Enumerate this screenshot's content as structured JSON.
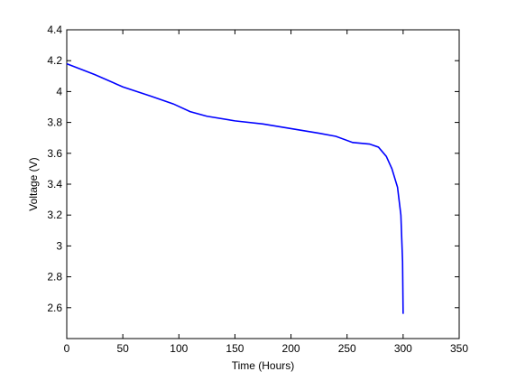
{
  "chart_data": {
    "type": "line",
    "xlabel": "Time (Hours)",
    "ylabel": "Voltage (V)",
    "x": [
      0,
      25,
      50,
      75,
      95,
      110,
      125,
      150,
      175,
      200,
      225,
      240,
      255,
      270,
      278,
      285,
      290,
      295,
      298,
      299.5,
      300
    ],
    "values": [
      4.18,
      4.11,
      4.03,
      3.97,
      3.92,
      3.87,
      3.84,
      3.81,
      3.79,
      3.76,
      3.73,
      3.71,
      3.67,
      3.66,
      3.64,
      3.58,
      3.5,
      3.38,
      3.2,
      2.9,
      2.56
    ],
    "color": "#0000ff",
    "xlim": [
      0,
      350
    ],
    "xticks": [
      0,
      50,
      100,
      150,
      200,
      250,
      300,
      350
    ],
    "ylim": [
      2.4,
      4.4
    ],
    "yticks": [
      2.6,
      2.8,
      3,
      3.2,
      3.4,
      3.6,
      3.8,
      4,
      4.2,
      4.4
    ]
  }
}
